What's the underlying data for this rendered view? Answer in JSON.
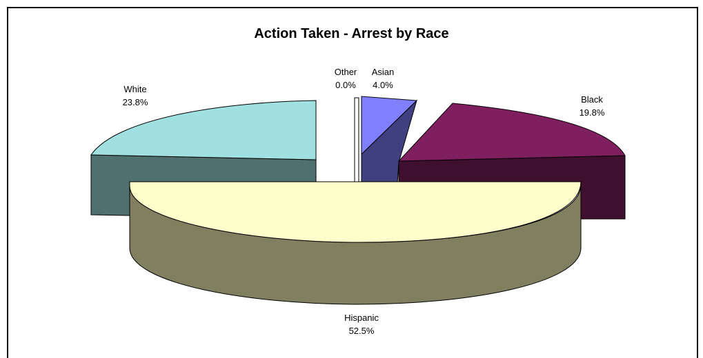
{
  "chart_data": {
    "type": "pie",
    "style": "3d-exploded",
    "title": "Action Taken - Arrest by Race",
    "slices": [
      {
        "label": "Other",
        "value": 0.0,
        "value_text": "0.0%",
        "color": "#ffffff"
      },
      {
        "label": "Asian",
        "value": 4.0,
        "value_text": "4.0%",
        "color": "#8080ff"
      },
      {
        "label": "Black",
        "value": 19.8,
        "value_text": "19.8%",
        "color": "#7f1f5f"
      },
      {
        "label": "Hispanic",
        "value": 52.5,
        "value_text": "52.5%",
        "color": "#ffffcc"
      },
      {
        "label": "White",
        "value": 23.8,
        "value_text": "23.8%",
        "color": "#a0e0e0"
      }
    ],
    "legend": "none"
  }
}
